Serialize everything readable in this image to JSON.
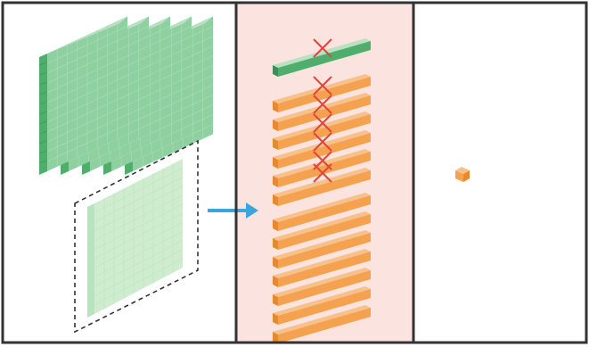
{
  "panels": [
    {
      "id": "input",
      "background": "#ffffff"
    },
    {
      "id": "pruning",
      "background": "#fbe3df"
    },
    {
      "id": "output",
      "background": "#ffffff"
    }
  ],
  "colors": {
    "border": "#333333",
    "green_front": "#4fae6c",
    "green_top": "#b9e2c3",
    "green_side": "#8fd0a0",
    "green_light_front": "#cfeccf",
    "green_light_top": "#e4f5e6",
    "green_light_side": "#b8e3bf",
    "orange_front": "#f4a24f",
    "orange_top": "#f8c18a",
    "orange_side": "#e8892d",
    "cross": "#e0463c",
    "arrow": "#3aa6dc",
    "dashed": "#333333"
  },
  "icons": {
    "arrow": "right-arrow-icon",
    "cross": "x-mark-icon"
  },
  "pruning": {
    "green_bars": 1,
    "orange_bars": 13,
    "crossed_bar_indices": [
      0,
      1,
      2,
      3,
      4,
      5
    ]
  },
  "input": {
    "stacked_slabs": 5,
    "selected_slabs": 1
  },
  "output": {
    "cubes": 1
  }
}
